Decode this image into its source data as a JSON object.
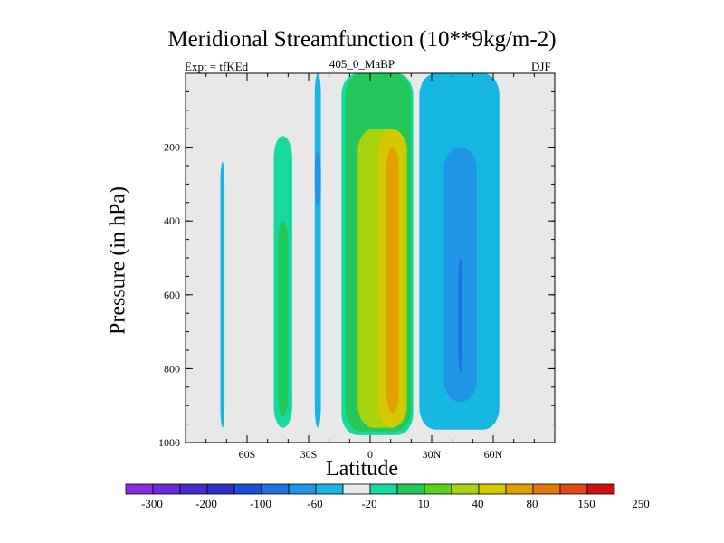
{
  "chart_data": {
    "type": "heatmap",
    "title": "Meridional Streamfunction (10**9kg/m-2)",
    "left_string": "Expt = tfKEd",
    "center_string": "405_0_MaBP",
    "right_string": "DJF",
    "xlabel": "Latitude",
    "ylabel": "Pressure (in hPa)",
    "xlim": [
      -90,
      90
    ],
    "ylim": [
      1000,
      0
    ],
    "x_ticks": [
      {
        "value": -60,
        "label": "60S"
      },
      {
        "value": -30,
        "label": "30S"
      },
      {
        "value": 0,
        "label": "0"
      },
      {
        "value": 30,
        "label": "30N"
      },
      {
        "value": 60,
        "label": "60N"
      }
    ],
    "y_ticks": [
      {
        "value": 200,
        "label": "200"
      },
      {
        "value": 400,
        "label": "400"
      },
      {
        "value": 600,
        "label": "600"
      },
      {
        "value": 800,
        "label": "800"
      },
      {
        "value": 1000,
        "label": "1000"
      }
    ],
    "colorbar": {
      "colors": [
        "#8a2be2",
        "#6a2bd8",
        "#4b2bd0",
        "#2f2fc8",
        "#1f4fd6",
        "#1f72e0",
        "#1f95e8",
        "#16b7e0",
        "#e8e8e8",
        "#17d9a0",
        "#22c95a",
        "#5ad21e",
        "#a7d40e",
        "#d4c800",
        "#e0a000",
        "#e07a10",
        "#e04a18",
        "#d01010"
      ],
      "tick_labels": [
        "-300",
        "-200",
        "-100",
        "-60",
        "-20",
        "10",
        "40",
        "80",
        "150",
        "250"
      ]
    },
    "contour_regions": [
      {
        "name": "sh-polar-cell-thin",
        "level": -20,
        "color": "#16b7e0",
        "x_range": [
          -73,
          -71
        ],
        "p_range": [
          240,
          960
        ]
      },
      {
        "name": "sh-ferrel-outer",
        "level": 10,
        "color": "#17d9a0",
        "x_range": [
          -47,
          -38
        ],
        "p_range": [
          170,
          960
        ]
      },
      {
        "name": "sh-ferrel-inner",
        "level": 40,
        "color": "#22c95a",
        "x_range": [
          -45,
          -40
        ],
        "p_range": [
          400,
          930
        ]
      },
      {
        "name": "sh-subtropic-neg",
        "level": -20,
        "color": "#16b7e0",
        "x_range": [
          -27,
          -24
        ],
        "p_range": [
          0,
          960
        ]
      },
      {
        "name": "sh-subtropic-neg-core",
        "level": -60,
        "color": "#1f95e8",
        "x_range": [
          -27,
          -24
        ],
        "p_range": [
          210,
          360
        ]
      },
      {
        "name": "hadley-10",
        "level": 10,
        "color": "#17d9a0",
        "x_range": [
          -14,
          21
        ],
        "p_range": [
          0,
          980
        ]
      },
      {
        "name": "hadley-40",
        "level": 40,
        "color": "#22c95a",
        "x_range": [
          -12,
          20
        ],
        "p_range": [
          0,
          970
        ]
      },
      {
        "name": "hadley-80",
        "level": 80,
        "color": "#a7d40e",
        "x_range": [
          -6,
          18
        ],
        "p_range": [
          150,
          960
        ]
      },
      {
        "name": "hadley-150",
        "level": 150,
        "color": "#d4c800",
        "x_range": [
          4,
          17
        ],
        "p_range": [
          150,
          960
        ]
      },
      {
        "name": "hadley-250",
        "level": 250,
        "color": "#e0a000",
        "x_range": [
          8,
          14
        ],
        "p_range": [
          200,
          920
        ]
      },
      {
        "name": "nh-ferrel-outer",
        "level": -20,
        "color": "#16b7e0",
        "x_range": [
          24,
          63
        ],
        "p_range": [
          0,
          965
        ]
      },
      {
        "name": "nh-ferrel-inner",
        "level": -60,
        "color": "#1f95e8",
        "x_range": [
          36,
          52
        ],
        "p_range": [
          200,
          890
        ]
      },
      {
        "name": "nh-ferrel-core",
        "level": -100,
        "color": "#1f72e0",
        "x_range": [
          43,
          45
        ],
        "p_range": [
          500,
          810
        ]
      }
    ]
  }
}
